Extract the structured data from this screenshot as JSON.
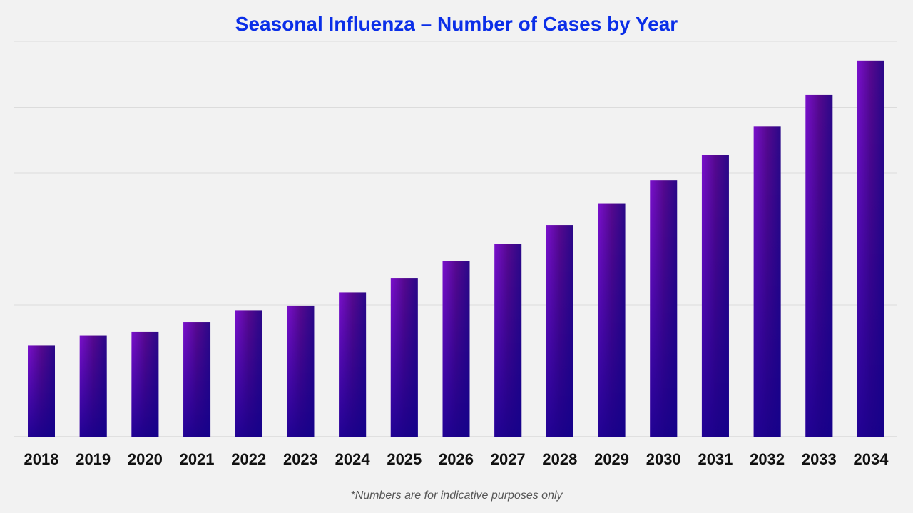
{
  "chart_data": {
    "type": "bar",
    "title": "Seasonal Influenza – Number of Cases by Year",
    "xlabel": "",
    "ylabel": "",
    "categories": [
      "2018",
      "2019",
      "2020",
      "2021",
      "2022",
      "2023",
      "2024",
      "2025",
      "2026",
      "2027",
      "2028",
      "2029",
      "2030",
      "2031",
      "2032",
      "2033",
      "2034"
    ],
    "values": [
      1.39,
      1.54,
      1.59,
      1.74,
      1.92,
      1.99,
      2.19,
      2.41,
      2.66,
      2.92,
      3.21,
      3.54,
      3.89,
      4.28,
      4.71,
      5.19,
      5.71
    ],
    "ylim": [
      0,
      6
    ],
    "grid": true,
    "y_tick_labels_shown": false,
    "bar_colors": {
      "top_left": "#7a10cc",
      "mid": "#55088e",
      "bottom_right": "#12008a"
    }
  },
  "footnote": "*Numbers are for indicative purposes only"
}
